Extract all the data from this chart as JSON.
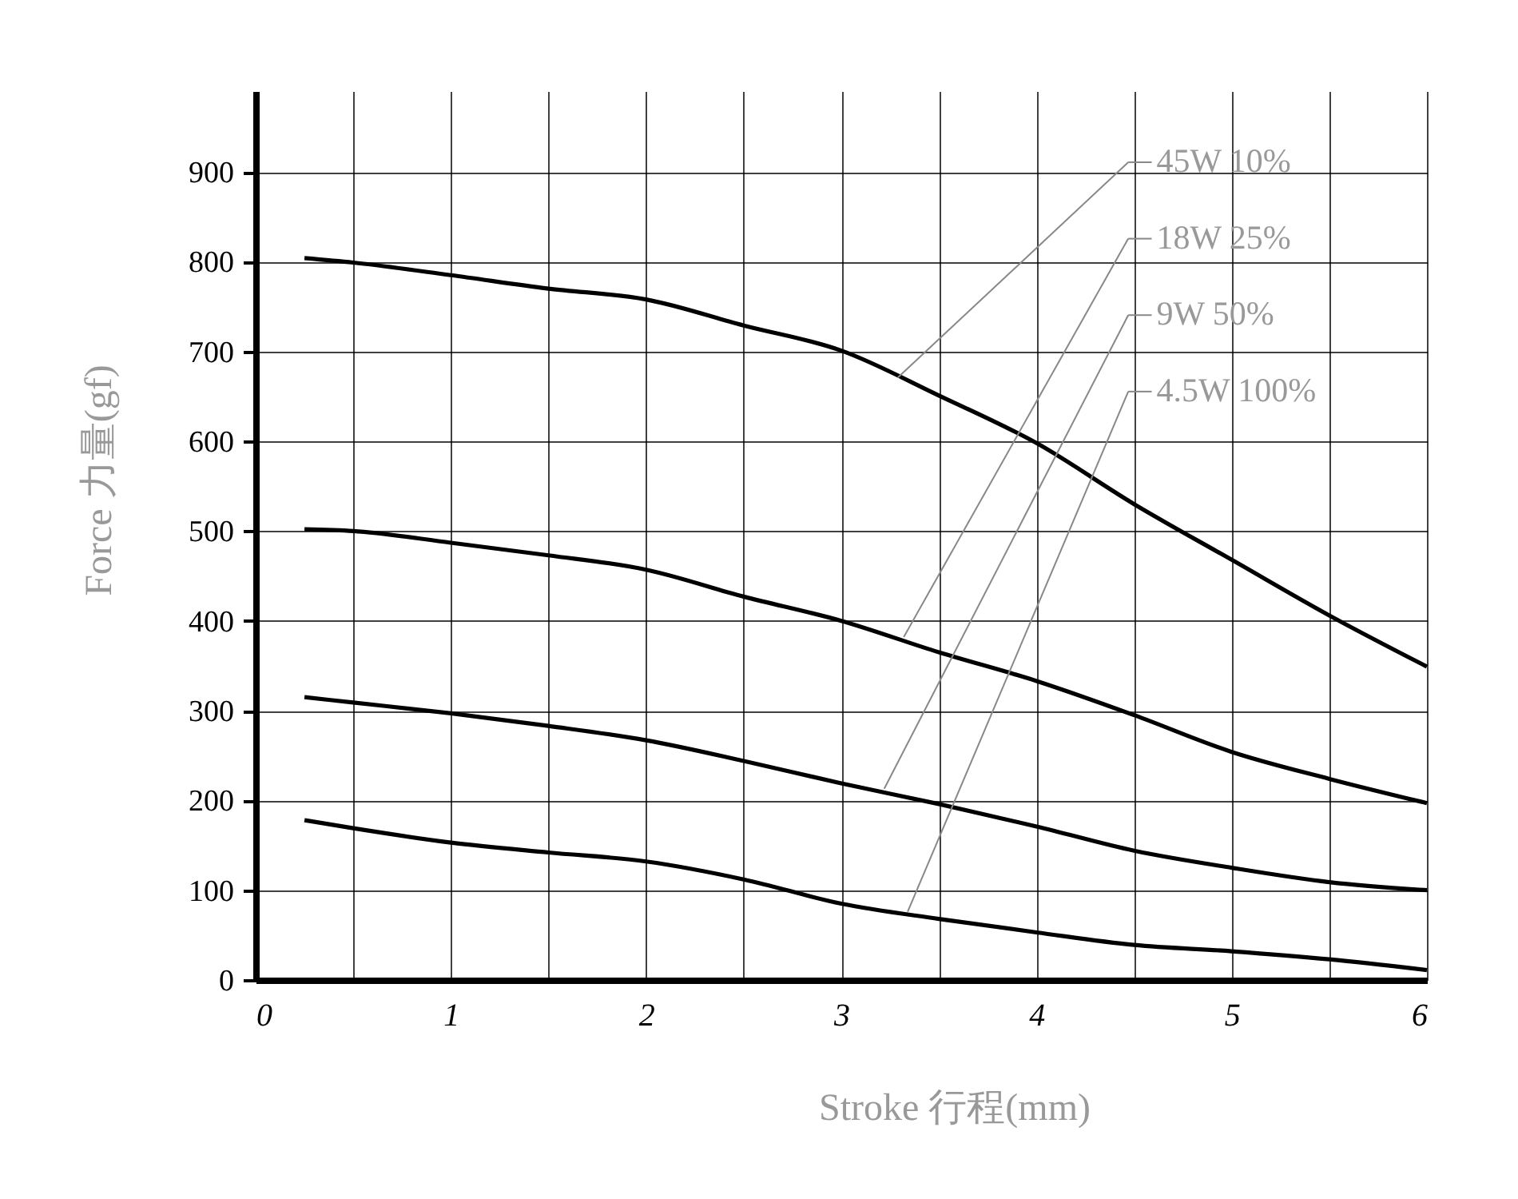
{
  "chart_data": {
    "type": "line",
    "xlabel": "Stroke 行程(mm)",
    "ylabel": "Force 力量(gf)",
    "x": [
      0.25,
      0.5,
      1,
      1.5,
      2,
      2.5,
      3,
      3.5,
      4,
      4.5,
      5,
      5.5,
      6
    ],
    "series": [
      {
        "color": "#000000",
        "values": [
          804,
          799,
          785,
          770,
          758,
          729,
          701,
          651,
          598,
          530,
          468,
          406,
          349
        ]
      },
      {
        "color": "#000000",
        "values": [
          502,
          500,
          487,
          473,
          457,
          427,
          400,
          365,
          333,
          295,
          254,
          224,
          197
        ]
      },
      {
        "color": "#000000",
        "values": [
          315,
          309,
          297,
          283,
          267,
          244,
          219,
          196,
          171,
          144,
          125,
          109,
          100
        ]
      },
      {
        "color": "#000000",
        "values": [
          178,
          169,
          153,
          142,
          132,
          112,
          85,
          68,
          53,
          39,
          32,
          23,
          11
        ]
      }
    ],
    "annotations": [
      {
        "text": "45W 10%",
        "x": 3.29,
        "y": 671
      },
      {
        "text": "18W 25%",
        "x": 3.32,
        "y": 382
      },
      {
        "text": "9W 50%",
        "x": 3.22,
        "y": 213
      },
      {
        "text": "4.5W 100%",
        "x": 3.34,
        "y": 76
      }
    ],
    "xlim": [
      0,
      6
    ],
    "xticks": [
      0,
      {
        "value": 0.5,
        "label": null
      },
      1,
      {
        "value": 1.5,
        "label": null
      },
      2,
      {
        "value": 2.5,
        "label": null
      },
      3,
      {
        "value": 3.5,
        "label": null
      },
      4,
      {
        "value": 4.5,
        "label": null
      },
      5,
      {
        "value": 5.5,
        "label": null
      },
      6
    ],
    "ylim": [
      0,
      990
    ],
    "yticks": [
      0,
      100,
      200,
      300,
      400,
      500,
      600,
      700,
      800,
      900
    ],
    "grid": true,
    "marker": "none",
    "line_style": "solid"
  }
}
